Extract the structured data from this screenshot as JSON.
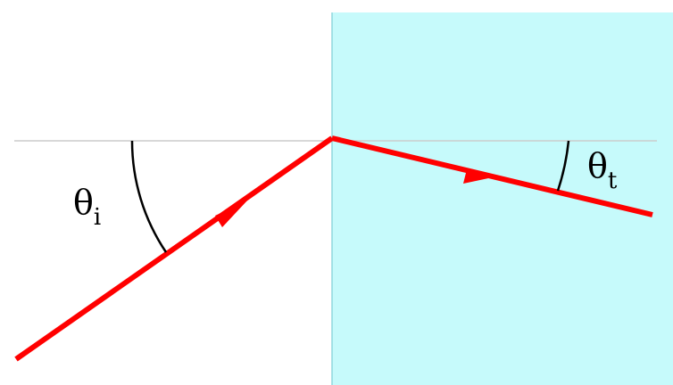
{
  "colors": {
    "background": "#ffffff",
    "medium": "#c6fafb",
    "medium_edge": "#8fd7dd",
    "normal_line": "#cccccc",
    "ray": "#ff0000",
    "arc": "#000000"
  },
  "labels": {
    "incident_symbol": "θ",
    "incident_subscript": "i",
    "transmitted_symbol": "θ",
    "transmitted_subscript": "t"
  }
}
